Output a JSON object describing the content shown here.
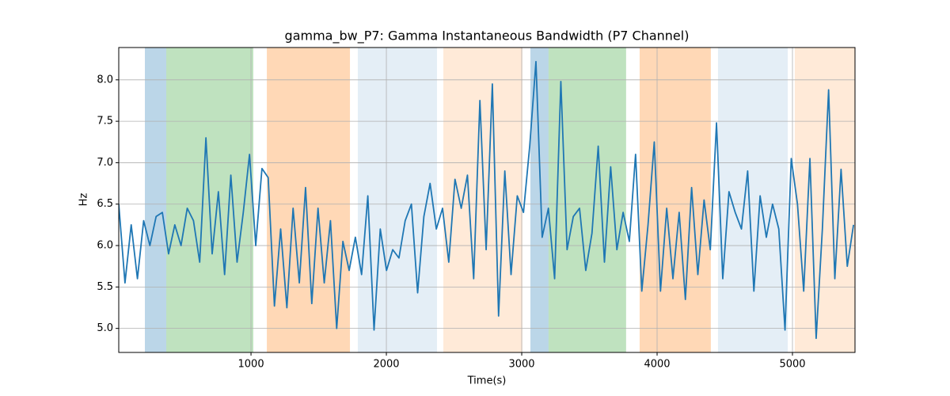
{
  "chart_data": {
    "type": "line",
    "title": "gamma_bw_P7: Gamma Instantaneous Bandwidth (P7 Channel)",
    "xlabel": "Time(s)",
    "ylabel": "Hz",
    "xlim": [
      23,
      5462
    ],
    "ylim": [
      4.71,
      8.39
    ],
    "xticks": [
      1000,
      2000,
      3000,
      4000,
      5000
    ],
    "yticks": [
      {
        "value": 5,
        "label": "5.0"
      },
      5.5,
      {
        "value": 6,
        "label": "6.0"
      },
      6.5,
      {
        "value": 7,
        "label": "7.0"
      },
      7.5,
      {
        "value": 8,
        "label": "8.0"
      }
    ],
    "grid": true,
    "spans": [
      {
        "start": 216,
        "end": 374,
        "color": "#1f77b4",
        "alpha": 0.3
      },
      {
        "start": 374,
        "end": 1017,
        "color": "#2ca02c",
        "alpha": 0.3
      },
      {
        "start": 1117,
        "end": 1731,
        "color": "#ff7f0e",
        "alpha": 0.3
      },
      {
        "start": 1789,
        "end": 2374,
        "color": "#1f77b4",
        "alpha": 0.12
      },
      {
        "start": 2421,
        "end": 3005,
        "color": "#ff7f0e",
        "alpha": 0.16
      },
      {
        "start": 3064,
        "end": 3198,
        "color": "#1f77b4",
        "alpha": 0.3
      },
      {
        "start": 3198,
        "end": 3771,
        "color": "#2ca02c",
        "alpha": 0.3
      },
      {
        "start": 3871,
        "end": 4397,
        "color": "#ff7f0e",
        "alpha": 0.3
      },
      {
        "start": 4450,
        "end": 4965,
        "color": "#1f77b4",
        "alpha": 0.12
      },
      {
        "start": 5017,
        "end": 5462,
        "color": "#ff7f0e",
        "alpha": 0.16
      }
    ],
    "x": [
      23,
      69,
      115,
      161,
      207,
      253,
      299,
      345,
      391,
      437,
      483,
      529,
      575,
      621,
      667,
      713,
      759,
      805,
      851,
      897,
      943,
      989,
      1035,
      1081,
      1127,
      1173,
      1219,
      1265,
      1311,
      1357,
      1403,
      1449,
      1495,
      1541,
      1587,
      1633,
      1679,
      1725,
      1771,
      1817,
      1863,
      1909,
      1955,
      2001,
      2047,
      2093,
      2139,
      2185,
      2231,
      2277,
      2323,
      2369,
      2415,
      2461,
      2507,
      2553,
      2599,
      2645,
      2691,
      2737,
      2783,
      2829,
      2875,
      2921,
      2967,
      3013,
      3059,
      3105,
      3151,
      3197,
      3243,
      3289,
      3335,
      3381,
      3427,
      3473,
      3519,
      3565,
      3611,
      3657,
      3703,
      3749,
      3795,
      3841,
      3887,
      3933,
      3979,
      4025,
      4071,
      4117,
      4163,
      4209,
      4255,
      4301,
      4347,
      4393,
      4439,
      4485,
      4531,
      4577,
      4623,
      4669,
      4715,
      4761,
      4807,
      4853,
      4899,
      4945,
      4991,
      5037,
      5083,
      5129,
      5175,
      5221,
      5267,
      5313,
      5359,
      5405,
      5451
    ],
    "series": [
      {
        "color": "#1f77b4",
        "values": [
          6.5,
          5.55,
          6.25,
          5.6,
          6.3,
          6.0,
          6.35,
          6.4,
          5.9,
          6.25,
          6.0,
          6.45,
          6.3,
          5.8,
          7.3,
          5.9,
          6.65,
          5.65,
          6.85,
          5.8,
          6.4,
          7.1,
          6.0,
          6.93,
          6.82,
          5.27,
          6.2,
          5.25,
          6.45,
          5.55,
          6.7,
          5.3,
          6.45,
          5.55,
          6.3,
          5.0,
          6.05,
          5.7,
          6.1,
          5.65,
          6.6,
          4.98,
          6.2,
          5.7,
          5.95,
          5.85,
          6.3,
          6.5,
          5.43,
          6.35,
          6.75,
          6.2,
          6.45,
          5.8,
          6.8,
          6.45,
          6.85,
          5.6,
          7.75,
          5.95,
          7.95,
          5.15,
          6.9,
          5.65,
          6.6,
          6.4,
          7.2,
          8.22,
          6.1,
          6.45,
          5.6,
          7.98,
          5.95,
          6.35,
          6.45,
          5.7,
          6.15,
          7.2,
          5.8,
          6.95,
          5.95,
          6.4,
          6.05,
          7.1,
          5.45,
          6.25,
          7.25,
          5.45,
          6.45,
          5.6,
          6.4,
          5.35,
          6.7,
          5.65,
          6.55,
          5.95,
          7.48,
          5.6,
          6.65,
          6.4,
          6.2,
          6.9,
          5.45,
          6.6,
          6.1,
          6.5,
          6.2,
          4.98,
          7.05,
          6.5,
          5.45,
          7.05,
          4.88,
          6.2,
          7.88,
          5.6,
          6.92,
          5.75,
          6.25
        ]
      }
    ]
  }
}
